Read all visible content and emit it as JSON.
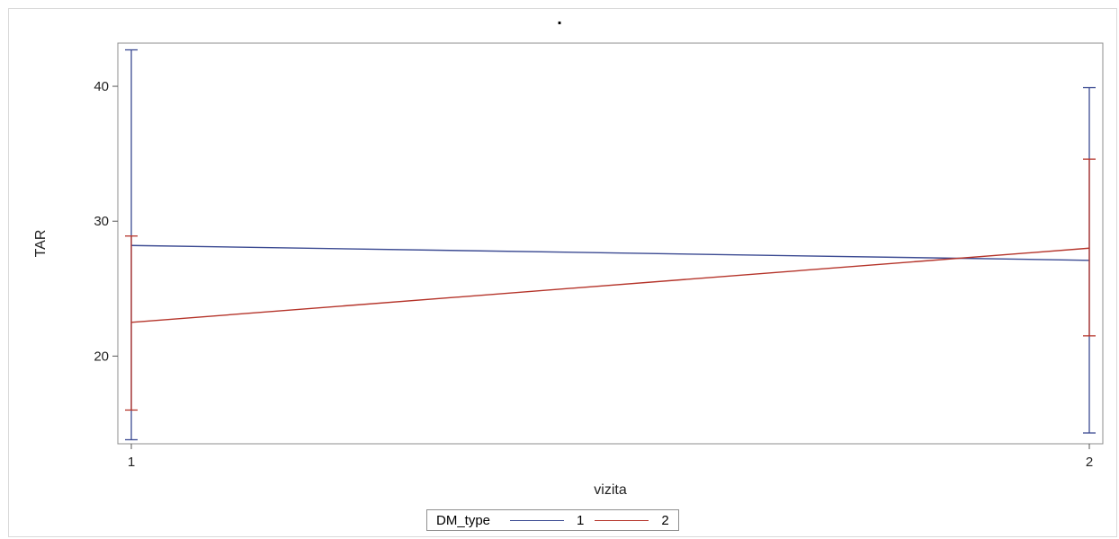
{
  "chart_data": {
    "type": "line",
    "title": ".",
    "xlabel": "vizita",
    "ylabel": "TAR",
    "x": [
      1,
      2
    ],
    "xlim": [
      1,
      2
    ],
    "ylim": [
      13.5,
      43.2
    ],
    "xticks": [
      "1",
      "2"
    ],
    "yticks": [
      20,
      30,
      40
    ],
    "grid": false,
    "legend_position": "bottom",
    "legend_title": "DM_type",
    "series": [
      {
        "name": "1",
        "color": "#3b4a92",
        "values": [
          28.2,
          27.1
        ],
        "lower": [
          13.8,
          14.3
        ],
        "upper": [
          42.7,
          39.9
        ]
      },
      {
        "name": "2",
        "color": "#b5342a",
        "values": [
          22.5,
          28.0
        ],
        "lower": [
          16.0,
          21.5
        ],
        "upper": [
          28.9,
          34.6
        ]
      }
    ]
  }
}
